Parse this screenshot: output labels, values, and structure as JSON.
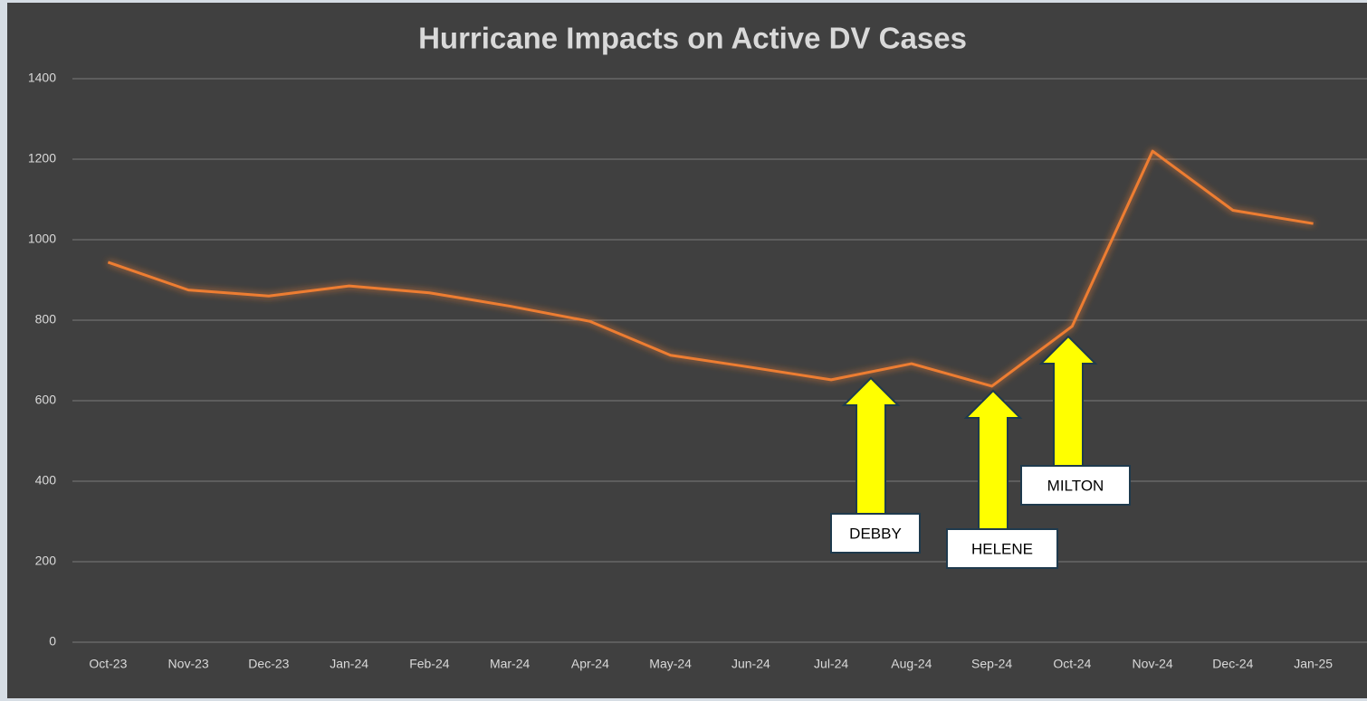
{
  "chart_data": {
    "type": "line",
    "title": "Hurricane Impacts on Active DV Cases",
    "categories": [
      "Oct-23",
      "Nov-23",
      "Dec-23",
      "Jan-24",
      "Feb-24",
      "Mar-24",
      "Apr-24",
      "May-24",
      "Jun-24",
      "Jul-24",
      "Aug-24",
      "Sep-24",
      "Oct-24",
      "Nov-24",
      "Dec-24",
      "Jan-25"
    ],
    "series": [
      {
        "name": "Active DV Cases",
        "color": "#ed7d31",
        "values": [
          944,
          875,
          860,
          885,
          868,
          835,
          797,
          713,
          683,
          652,
          692,
          636,
          785,
          1220,
          1073,
          1040
        ]
      }
    ],
    "ylim": [
      0,
      1400
    ],
    "yticks": [
      0,
      200,
      400,
      600,
      800,
      1000,
      1200,
      1400
    ],
    "grid": true,
    "annotations": [
      {
        "text": "DEBBY"
      },
      {
        "text": "HELENE"
      },
      {
        "text": "MILTON"
      }
    ]
  }
}
